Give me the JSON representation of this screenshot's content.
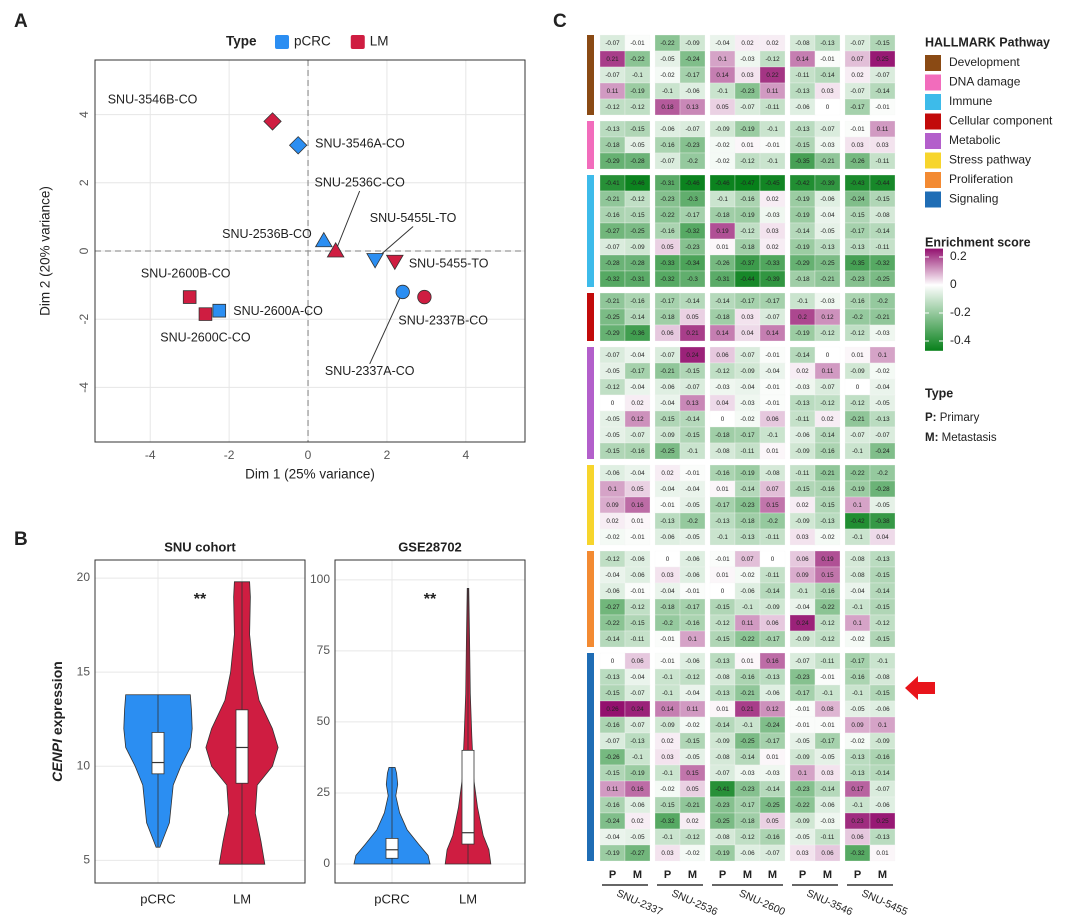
{
  "panel_labels": [
    "A",
    "B",
    "C"
  ],
  "chart_data": [
    {
      "type": "scatter",
      "legend_title": "Type",
      "xlabel": "Dim 1 (25% variance)",
      "ylabel": "Dim 2 (20% variance)",
      "xlim": [
        -5.4,
        5.5
      ],
      "ylim": [
        -5.6,
        5.6
      ],
      "xticks": [
        -4,
        -2,
        0,
        2,
        4
      ],
      "yticks": [
        -4,
        -2,
        0,
        2,
        4
      ],
      "grid": true,
      "series": [
        {
          "name": "pCRC",
          "color": "#2b8ef2",
          "labels": [
            "SNU-3546A-CO",
            "SNU-2536B-CO",
            "SNU-5455L-TO",
            "SNU-2600A-CO",
            "SNU-2337A-CO"
          ],
          "x": [
            -0.25,
            0.4,
            1.7,
            -2.25,
            2.4
          ],
          "y": [
            3.1,
            0.3,
            -0.25,
            -1.75,
            -1.2
          ],
          "markers": [
            "diamond",
            "triangle",
            "triangle-down",
            "square",
            "circle"
          ]
        },
        {
          "name": "LM",
          "color": "#cf1d41",
          "labels": [
            "SNU-3546B-CO",
            "SNU-2536C-CO",
            "SNU-5455-TO",
            "SNU-2600B-CO",
            "SNU-2600C-CO",
            "SNU-2337B-CO"
          ],
          "x": [
            -0.9,
            0.7,
            2.2,
            -3.0,
            -2.6,
            2.95
          ],
          "y": [
            3.8,
            0,
            -0.3,
            -1.35,
            -1.85,
            -1.35
          ],
          "markers": [
            "diamond",
            "triangle",
            "triangle-down",
            "square",
            "square",
            "circle"
          ]
        }
      ]
    },
    {
      "type": "violin",
      "title": "SNU cohort",
      "ylabel_gene": "CENPI",
      "ylabel": "expression",
      "annotation": "**",
      "categories": [
        "pCRC",
        "LM"
      ],
      "colors": [
        "#2b8ef2",
        "#cf1d41"
      ],
      "ylim": [
        3.8,
        20.96
      ],
      "yticks": [
        5,
        10,
        15,
        20
      ],
      "grid": true,
      "boxes": [
        {
          "min": 5.7,
          "q1": 9.6,
          "median": 10.2,
          "q3": 11.8,
          "max": 13.8
        },
        {
          "min": 4.8,
          "q1": 9.1,
          "median": 11,
          "q3": 13,
          "max": 19.8
        }
      ],
      "violins": [
        {
          "y": [
            5.7,
            7,
            8,
            9,
            10,
            11,
            12,
            13,
            13.8
          ],
          "width": [
            0.05,
            0.3,
            0.35,
            0.4,
            0.6,
            0.85,
            0.9,
            0.88,
            0.85
          ]
        },
        {
          "y": [
            4.8,
            6,
            7.5,
            9,
            10,
            11,
            12,
            13.5,
            15,
            17,
            19,
            19.8
          ],
          "width": [
            0.6,
            0.5,
            0.35,
            0.4,
            0.8,
            0.95,
            0.8,
            0.45,
            0.3,
            0.2,
            0.22,
            0.2
          ]
        }
      ]
    },
    {
      "type": "violin",
      "title": "GSE28702",
      "annotation": "**",
      "categories": [
        "pCRC",
        "LM"
      ],
      "colors": [
        "#2b8ef2",
        "#cf1d41"
      ],
      "ylim": [
        -6.7,
        107
      ],
      "yticks": [
        0,
        25,
        50,
        75,
        100
      ],
      "grid": true,
      "boxes": [
        {
          "min": 0,
          "q1": 2,
          "median": 5,
          "q3": 9,
          "max": 34
        },
        {
          "min": 0,
          "q1": 7,
          "median": 11,
          "q3": 40,
          "max": 97
        }
      ],
      "violins": [
        {
          "y": [
            0,
            3,
            7,
            12,
            18,
            24,
            28,
            32,
            34
          ],
          "width": [
            1,
            0.95,
            0.7,
            0.4,
            0.2,
            0.1,
            0.15,
            0.12,
            0.08
          ]
        },
        {
          "y": [
            0,
            5,
            10,
            20,
            30,
            45,
            60,
            80,
            97
          ],
          "width": [
            0.6,
            0.55,
            0.4,
            0.25,
            0.15,
            0.1,
            0.06,
            0.04,
            0.02
          ]
        }
      ]
    },
    {
      "type": "heatmap",
      "legend_title": "HALLMARK Pathway",
      "colorbar_title": "Enrichment score",
      "clim": [
        -0.47,
        0.26
      ],
      "cticks": [
        0.2,
        0,
        -0.2,
        -0.4
      ],
      "low_color": "#07801a",
      "high_color": "#93106e",
      "type_legend": {
        "title": "Type",
        "items": [
          {
            "key": "P:",
            "label": "Primary"
          },
          {
            "key": "M:",
            "label": "Metastasis"
          }
        ]
      },
      "columns": [
        {
          "name": "SNU-2337",
          "types": [
            "P",
            "M"
          ]
        },
        {
          "name": "SNU-2536",
          "types": [
            "P",
            "M"
          ]
        },
        {
          "name": "SNU-2600",
          "types": [
            "P",
            "M",
            "M"
          ]
        },
        {
          "name": "SNU-3546",
          "types": [
            "P",
            "M"
          ]
        },
        {
          "name": "SNU-5455",
          "types": [
            "P",
            "M"
          ]
        }
      ],
      "groups": [
        {
          "name": "Development",
          "color": "#8a4a14",
          "rows": [
            [
              -0.07,
              -0.01,
              -0.22,
              -0.09,
              -0.04,
              0.02,
              0.02,
              -0.08,
              -0.13,
              -0.07,
              -0.15
            ],
            [
              0.21,
              -0.22,
              -0.05,
              -0.24,
              0.1,
              -0.03,
              -0.12,
              0.14,
              -0.01,
              0.07,
              0.25
            ],
            [
              -0.07,
              -0.1,
              -0.02,
              -0.17,
              0.14,
              0.03,
              0.22,
              -0.11,
              -0.14,
              0.02,
              -0.07
            ],
            [
              0.11,
              -0.19,
              -0.1,
              -0.06,
              -0.1,
              -0.23,
              0.11,
              -0.13,
              0.03,
              -0.07,
              -0.14
            ],
            [
              -0.12,
              -0.12,
              0.18,
              0.13,
              0.05,
              -0.07,
              -0.11,
              -0.06,
              0,
              -0.17,
              -0.01
            ]
          ]
        },
        {
          "name": "DNA damage",
          "color": "#f26cbc",
          "rows": [
            [
              -0.13,
              -0.15,
              -0.06,
              -0.07,
              -0.09,
              -0.19,
              -0.1,
              -0.13,
              -0.07,
              -0.01,
              0.11
            ],
            [
              -0.18,
              -0.05,
              -0.16,
              -0.23,
              -0.02,
              0.01,
              -0.01,
              -0.15,
              -0.03,
              0.03,
              0.03
            ],
            [
              -0.29,
              -0.28,
              -0.07,
              -0.2,
              -0.02,
              -0.12,
              -0.1,
              -0.35,
              -0.21,
              -0.26,
              -0.11
            ]
          ]
        },
        {
          "name": "Immune",
          "color": "#3dbbea",
          "rows": [
            [
              -0.41,
              -0.46,
              -0.31,
              -0.46,
              -0.46,
              -0.47,
              -0.45,
              -0.42,
              -0.39,
              -0.43,
              -0.44
            ],
            [
              -0.21,
              -0.12,
              -0.23,
              -0.3,
              -0.1,
              -0.16,
              0.02,
              -0.19,
              -0.06,
              -0.24,
              -0.15
            ],
            [
              -0.16,
              -0.15,
              -0.22,
              -0.17,
              -0.18,
              -0.19,
              -0.03,
              -0.19,
              -0.04,
              -0.15,
              -0.08
            ],
            [
              -0.27,
              -0.25,
              -0.16,
              -0.32,
              0.19,
              -0.12,
              0.03,
              -0.14,
              -0.05,
              -0.17,
              -0.14
            ],
            [
              -0.07,
              -0.09,
              0.05,
              -0.23,
              0.01,
              -0.18,
              0.02,
              -0.19,
              -0.13,
              -0.13,
              -0.11
            ],
            [
              -0.28,
              -0.28,
              -0.33,
              -0.34,
              -0.26,
              -0.37,
              -0.33,
              -0.29,
              -0.25,
              -0.35,
              -0.32
            ],
            [
              -0.32,
              -0.31,
              -0.32,
              -0.3,
              -0.31,
              -0.44,
              -0.39,
              -0.18,
              -0.21,
              -0.23,
              -0.25
            ]
          ]
        },
        {
          "name": "Cellular component",
          "color": "#c20a0a",
          "rows": [
            [
              -0.21,
              -0.16,
              -0.17,
              -0.14,
              -0.14,
              -0.17,
              -0.17,
              -0.1,
              -0.03,
              -0.16,
              -0.2
            ],
            [
              -0.25,
              -0.14,
              -0.18,
              0.05,
              -0.18,
              0.03,
              -0.07,
              0.2,
              0.12,
              -0.2,
              -0.21
            ],
            [
              -0.29,
              -0.36,
              0.06,
              0.21,
              0.14,
              0.04,
              0.14,
              -0.19,
              -0.12,
              -0.12,
              -0.03
            ]
          ]
        },
        {
          "name": "Metabolic",
          "color": "#b35fcb",
          "rows": [
            [
              -0.07,
              -0.04,
              -0.07,
              0.24,
              0.06,
              -0.07,
              -0.01,
              -0.14,
              0,
              0.01,
              0.1
            ],
            [
              -0.05,
              -0.17,
              -0.21,
              -0.15,
              -0.12,
              -0.09,
              -0.04,
              0.02,
              0.11,
              -0.09,
              -0.02
            ],
            [
              -0.12,
              -0.04,
              -0.06,
              -0.07,
              -0.03,
              -0.04,
              -0.01,
              -0.03,
              -0.07,
              0,
              -0.04
            ],
            [
              0,
              0.02,
              -0.04,
              0.13,
              0.04,
              -0.03,
              -0.01,
              -0.13,
              -0.12,
              -0.12,
              -0.05
            ],
            [
              -0.05,
              0.12,
              -0.15,
              -0.14,
              0,
              -0.02,
              0.06,
              -0.11,
              0.02,
              -0.21,
              -0.13
            ],
            [
              -0.05,
              -0.07,
              -0.09,
              -0.15,
              -0.18,
              -0.17,
              -0.1,
              -0.06,
              -0.14,
              -0.07,
              -0.07
            ],
            [
              -0.15,
              -0.16,
              -0.25,
              -0.1,
              -0.08,
              -0.11,
              0.01,
              -0.09,
              -0.16,
              -0.1,
              -0.24
            ]
          ]
        },
        {
          "name": "Stress pathway",
          "color": "#f7d52c",
          "rows": [
            [
              -0.06,
              -0.04,
              0.02,
              -0.01,
              -0.16,
              -0.19,
              -0.08,
              -0.11,
              -0.21,
              -0.22,
              -0.2
            ],
            [
              0.1,
              0.05,
              -0.04,
              -0.04,
              0.01,
              -0.14,
              0.07,
              -0.15,
              -0.16,
              -0.19,
              -0.28
            ],
            [
              0.09,
              0.16,
              -0.01,
              -0.05,
              -0.17,
              -0.23,
              0.15,
              0.02,
              -0.15,
              0.1,
              -0.05
            ],
            [
              0.02,
              0.01,
              -0.13,
              -0.2,
              -0.13,
              -0.18,
              -0.2,
              -0.09,
              -0.13,
              -0.42,
              -0.38
            ],
            [
              -0.02,
              -0.01,
              -0.06,
              -0.05,
              -0.1,
              -0.13,
              -0.11,
              0.03,
              -0.02,
              -0.1,
              0.04
            ]
          ]
        },
        {
          "name": "Proliferation",
          "color": "#f38a32",
          "rows": [
            [
              -0.12,
              -0.06,
              0,
              -0.06,
              -0.01,
              0.07,
              0,
              0.06,
              0.19,
              -0.08,
              -0.13
            ],
            [
              -0.04,
              -0.06,
              0.03,
              -0.06,
              0.01,
              -0.02,
              -0.11,
              0.09,
              0.15,
              -0.08,
              -0.15
            ],
            [
              -0.06,
              -0.01,
              -0.04,
              -0.01,
              0,
              -0.06,
              -0.14,
              -0.1,
              -0.16,
              -0.04,
              -0.14
            ],
            [
              -0.27,
              -0.12,
              -0.18,
              -0.17,
              -0.15,
              -0.1,
              -0.09,
              -0.04,
              -0.22,
              -0.1,
              -0.15
            ],
            [
              -0.22,
              -0.15,
              -0.2,
              -0.16,
              -0.12,
              0.11,
              0.06,
              0.24,
              -0.12,
              0.1,
              -0.12
            ],
            [
              -0.14,
              -0.11,
              -0.01,
              0.1,
              -0.15,
              -0.22,
              -0.17,
              -0.09,
              -0.12,
              -0.02,
              -0.15
            ]
          ]
        },
        {
          "name": "Signaling",
          "color": "#1f6db5",
          "rows": [
            [
              0,
              0.06,
              -0.01,
              -0.06,
              -0.13,
              0.01,
              0.16,
              -0.07,
              -0.11,
              -0.17,
              -0.1
            ],
            [
              -0.13,
              -0.04,
              -0.1,
              -0.12,
              -0.08,
              -0.16,
              -0.13,
              -0.23,
              -0.01,
              -0.16,
              -0.08
            ],
            [
              -0.15,
              -0.07,
              -0.1,
              -0.04,
              -0.13,
              -0.21,
              -0.06,
              -0.17,
              -0.1,
              -0.1,
              -0.15
            ],
            [
              0.26,
              0.24,
              0.14,
              0.11,
              0.01,
              0.21,
              0.12,
              -0.01,
              0.08,
              -0.05,
              -0.06
            ],
            [
              -0.16,
              -0.07,
              -0.09,
              -0.02,
              -0.14,
              -0.1,
              -0.24,
              -0.01,
              -0.01,
              0.09,
              0.1
            ],
            [
              -0.07,
              -0.13,
              0.02,
              -0.15,
              -0.09,
              -0.25,
              -0.17,
              -0.05,
              -0.17,
              -0.02,
              -0.09
            ],
            [
              -0.26,
              -0.1,
              0.03,
              -0.05,
              -0.08,
              -0.14,
              0.01,
              -0.09,
              -0.05,
              -0.13,
              -0.16
            ],
            [
              -0.15,
              -0.19,
              -0.1,
              0.15,
              -0.07,
              -0.03,
              -0.03,
              0.1,
              0.03,
              -0.13,
              -0.14
            ],
            [
              0.11,
              0.16,
              -0.02,
              0.05,
              -0.41,
              -0.23,
              -0.14,
              -0.23,
              -0.14,
              0.17,
              -0.07
            ],
            [
              -0.16,
              -0.06,
              -0.15,
              -0.21,
              -0.23,
              -0.17,
              -0.25,
              -0.22,
              -0.06,
              -0.1,
              -0.06
            ],
            [
              -0.24,
              0.02,
              -0.32,
              0.02,
              -0.25,
              -0.18,
              0.05,
              -0.09,
              -0.03,
              0.23,
              0.25
            ],
            [
              -0.04,
              -0.05,
              -0.1,
              -0.12,
              -0.08,
              -0.12,
              -0.16,
              -0.05,
              -0.11,
              0.06,
              -0.13
            ],
            [
              -0.19,
              -0.27,
              0.03,
              -0.02,
              -0.19,
              -0.06,
              -0.07,
              0.03,
              0.06,
              -0.32,
              0.01
            ]
          ]
        }
      ]
    }
  ]
}
